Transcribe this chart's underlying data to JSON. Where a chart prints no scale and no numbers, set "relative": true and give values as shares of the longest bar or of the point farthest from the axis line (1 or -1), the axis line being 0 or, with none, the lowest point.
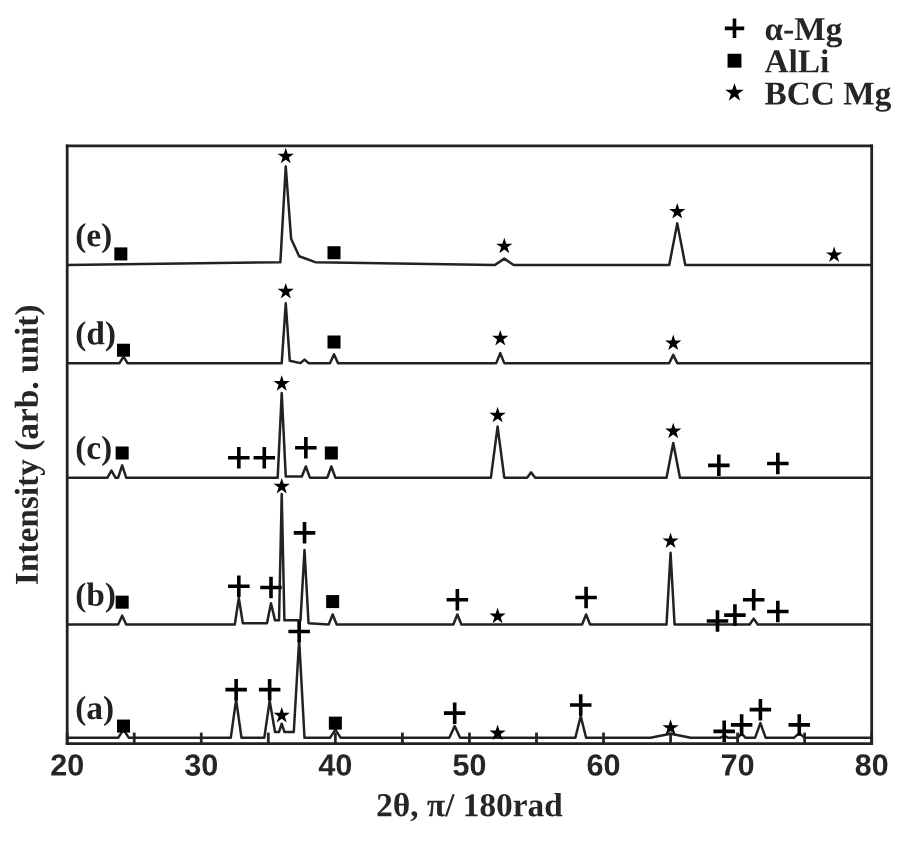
{
  "chart_data": {
    "type": "line",
    "relative": true,
    "xlabel": "2θ, π/ 180rad",
    "ylabel": "Intensity (arb. unit)",
    "xlim": [
      20,
      80
    ],
    "xticks": [
      20,
      {
        "value": 25,
        "label": null
      },
      30,
      {
        "value": 35,
        "label": null
      },
      40,
      {
        "value": 45,
        "label": null
      },
      50,
      {
        "value": 55,
        "label": null
      },
      60,
      {
        "value": 65,
        "label": null
      },
      70,
      {
        "value": 75,
        "label": null
      },
      80
    ],
    "tick_labels": "x",
    "grid": false,
    "legend": "top right",
    "series": [
      {
        "name": "(a)",
        "color": "#222222",
        "x": [
          20,
          23.8,
          24.2,
          24.6,
          32.2,
          32.6,
          33.0,
          34.7,
          35.1,
          35.5,
          35.8,
          36.0,
          36.2,
          36.9,
          37.3,
          37.7,
          39.6,
          40.0,
          40.4,
          48.5,
          48.9,
          49.3,
          57.9,
          58.3,
          58.7,
          63.5,
          65.0,
          66.5,
          68.7,
          69.0,
          69.3,
          70.0,
          70.3,
          70.6,
          71.3,
          71.7,
          72.1,
          74.2,
          74.6,
          75.0,
          80
        ],
        "values": [
          0.01,
          0.01,
          0.024,
          0.01,
          0.01,
          0.075,
          0.01,
          0.01,
          0.073,
          0.02,
          0.02,
          0.034,
          0.02,
          0.02,
          0.177,
          0.01,
          0.01,
          0.024,
          0.01,
          0.01,
          0.03,
          0.01,
          0.01,
          0.047,
          0.01,
          0.01,
          0.017,
          0.01,
          0.01,
          0.014,
          0.01,
          0.01,
          0.017,
          0.01,
          0.01,
          0.035,
          0.01,
          0.01,
          0.018,
          0.01,
          0.01
        ]
      },
      {
        "name": "(b)",
        "color": "#222222",
        "x": [
          20,
          23.8,
          24.1,
          24.4,
          32.5,
          32.8,
          33.1,
          34.9,
          35.2,
          35.5,
          35.8,
          36.0,
          36.2,
          37.4,
          37.7,
          38.0,
          39.5,
          39.8,
          40.1,
          48.8,
          49.1,
          49.4,
          58.4,
          58.7,
          59.0,
          64.7,
          65.0,
          65.3,
          70.9,
          71.2,
          71.5,
          80
        ],
        "values": [
          0.203,
          0.203,
          0.218,
          0.203,
          0.203,
          0.248,
          0.205,
          0.205,
          0.239,
          0.21,
          0.21,
          0.425,
          0.21,
          0.21,
          0.33,
          0.205,
          0.203,
          0.22,
          0.203,
          0.203,
          0.22,
          0.203,
          0.203,
          0.22,
          0.203,
          0.203,
          0.325,
          0.203,
          0.203,
          0.213,
          0.203,
          0.203
        ]
      },
      {
        "name": "(c)",
        "color": "#222222",
        "x": [
          20,
          23.0,
          23.3,
          23.6,
          23.8,
          24.1,
          24.4,
          35.7,
          36.0,
          36.3,
          37.5,
          37.8,
          38.1,
          39.4,
          39.7,
          40.0,
          51.6,
          52.1,
          52.6,
          54.3,
          54.6,
          54.9,
          64.7,
          65.2,
          65.7,
          80
        ],
        "values": [
          0.453,
          0.453,
          0.465,
          0.453,
          0.453,
          0.474,
          0.453,
          0.453,
          0.597,
          0.455,
          0.455,
          0.472,
          0.453,
          0.453,
          0.472,
          0.453,
          0.453,
          0.54,
          0.453,
          0.453,
          0.462,
          0.453,
          0.453,
          0.512,
          0.453,
          0.453
        ]
      },
      {
        "name": "(d)",
        "color": "#222222",
        "x": [
          20,
          23.9,
          24.2,
          24.5,
          36.0,
          36.3,
          36.6,
          37.4,
          37.7,
          38.0,
          39.6,
          39.9,
          40.2,
          52.0,
          52.3,
          52.6,
          64.9,
          65.2,
          65.5,
          80
        ],
        "values": [
          0.648,
          0.648,
          0.659,
          0.648,
          0.648,
          0.75,
          0.652,
          0.648,
          0.654,
          0.648,
          0.648,
          0.663,
          0.648,
          0.648,
          0.665,
          0.648,
          0.648,
          0.662,
          0.648,
          0.648
        ]
      },
      {
        "name": "(e)",
        "color": "#222222",
        "x": [
          20,
          35.9,
          36.3,
          36.7,
          37.3,
          38.5,
          51.9,
          52.6,
          53.3,
          64.9,
          65.5,
          66.1,
          80
        ],
        "values": [
          0.815,
          0.82,
          0.983,
          0.86,
          0.83,
          0.82,
          0.815,
          0.826,
          0.815,
          0.815,
          0.886,
          0.815,
          0.815
        ]
      },
      {
        "name": "α-Mg",
        "type": "scatter",
        "marker": "cross",
        "color": "#000000",
        "x": [
          32.6,
          35.1,
          37.3,
          48.9,
          58.3,
          69.0,
          70.3,
          71.7,
          74.6,
          32.8,
          35.2,
          37.7,
          49.1,
          58.7,
          68.5,
          69.8,
          71.2,
          73.0,
          32.8,
          34.7,
          37.8,
          68.6,
          73.0
        ],
        "values": [
          0.092,
          0.092,
          0.191,
          0.052,
          0.066,
          0.021,
          0.032,
          0.058,
          0.032,
          0.268,
          0.266,
          0.359,
          0.245,
          0.249,
          0.209,
          0.219,
          0.245,
          0.225,
          0.487,
          0.487,
          0.504,
          0.474,
          0.477
        ]
      },
      {
        "name": "AlLi",
        "type": "scatter",
        "marker": "square",
        "color": "#000000",
        "x": [
          24.2,
          40.0,
          24.1,
          39.8,
          24.1,
          39.7,
          24.2,
          39.9,
          24.0,
          39.9
        ],
        "values": [
          0.03,
          0.035,
          0.241,
          0.242,
          0.495,
          0.495,
          0.67,
          0.684,
          0.834,
          0.836
        ]
      },
      {
        "name": "BCC Mg",
        "type": "scatter",
        "marker": "star",
        "color": "#000000",
        "x": [
          36.0,
          52.1,
          65.0,
          36.0,
          52.1,
          65.0,
          36.0,
          52.1,
          65.2,
          36.3,
          52.3,
          65.2,
          36.3,
          52.6,
          65.5,
          77.2
        ],
        "values": [
          0.048,
          0.018,
          0.027,
          0.438,
          0.217,
          0.345,
          0.613,
          0.559,
          0.532,
          0.77,
          0.69,
          0.682,
          1.0,
          0.847,
          0.906,
          0.832
        ]
      }
    ]
  }
}
